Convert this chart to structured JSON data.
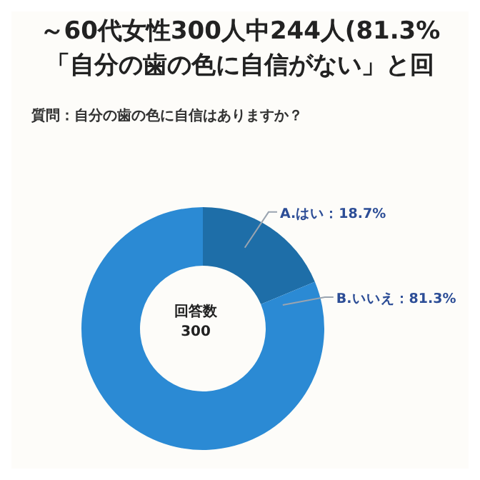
{
  "chart_data": {
    "type": "donut",
    "title": "～60代女性300人中244人(81.3%",
    "subtitle": "「自分の歯の色に自信がない」と回",
    "annotations": [
      "質問：自分の歯の色に自信はありますか？",
      "回答数",
      "300"
    ],
    "categories": [
      "A.はい",
      "B.いいえ"
    ],
    "values": [
      18.7,
      81.3
    ],
    "colors": [
      "#1e6ea8",
      "#2b8ad4"
    ],
    "value_labels": [
      "：18.7%",
      "：81.3%"
    ]
  }
}
